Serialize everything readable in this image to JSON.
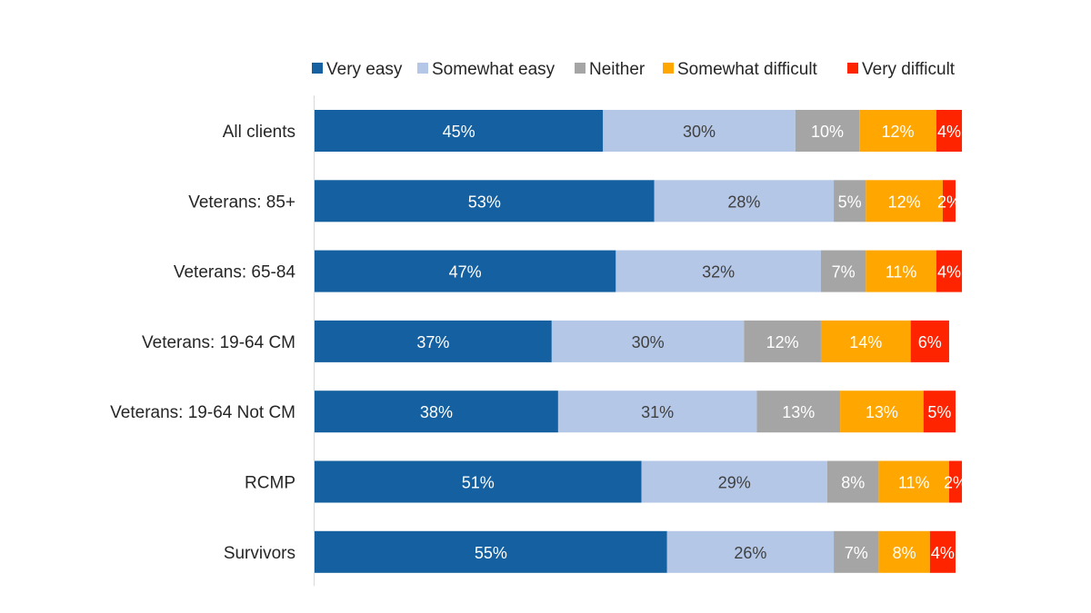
{
  "chart_data": {
    "type": "bar",
    "orientation": "horizontal",
    "stacked": true,
    "title": "",
    "xlabel": "",
    "ylabel": "",
    "xlim": [
      0,
      100
    ],
    "grid": false,
    "legend_position": "top",
    "categories": [
      "All clients",
      "Veterans: 85+",
      "Veterans: 65-84",
      "Veterans: 19-64 CM",
      "Veterans: 19-64 Not CM",
      "RCMP",
      "Survivors"
    ],
    "series": [
      {
        "name": "Very easy",
        "color": "#1560A0",
        "label_color": "#FFFFFF",
        "values": [
          45,
          53,
          47,
          37,
          38,
          51,
          55
        ]
      },
      {
        "name": "Somewhat easy",
        "color": "#B4C7E7",
        "label_color": "#404040",
        "values": [
          30,
          28,
          32,
          30,
          31,
          29,
          26
        ]
      },
      {
        "name": "Neither",
        "color": "#A5A5A5",
        "label_color": "#FFFFFF",
        "values": [
          10,
          5,
          7,
          12,
          13,
          8,
          7
        ]
      },
      {
        "name": "Somewhat difficult",
        "color": "#FFA600",
        "label_color": "#FFFFFF",
        "values": [
          12,
          12,
          11,
          14,
          13,
          11,
          8
        ]
      },
      {
        "name": "Very difficult",
        "color": "#FF2400",
        "label_color": "#FFFFFF",
        "values": [
          4,
          2,
          4,
          6,
          5,
          2,
          4
        ]
      }
    ],
    "value_suffix": "%"
  }
}
